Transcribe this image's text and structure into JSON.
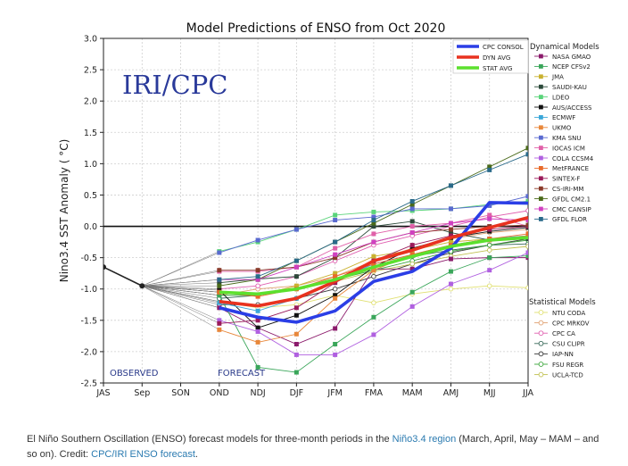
{
  "chart_data": {
    "type": "line",
    "title": "Model Predictions of ENSO from Oct 2020",
    "ylabel": "Nino3.4 SST Anomaly ( °C)",
    "xlabel": "",
    "categories": [
      "JAS",
      "Sep",
      "SON",
      "OND",
      "NDJ",
      "DJF",
      "JFM",
      "FMA",
      "MAM",
      "AMJ",
      "MJJ",
      "JJA"
    ],
    "yticks": [
      3.0,
      2.5,
      2.0,
      1.5,
      1.0,
      0.5,
      0.0,
      -0.5,
      -1.0,
      -1.5,
      -2.0,
      -2.5
    ],
    "ylim": [
      -2.5,
      3.0
    ],
    "grid": true,
    "zero_line": true,
    "watermark": "IRI/CPC",
    "observed_label": "OBSERVED",
    "forecast_label": "FORECAST",
    "observed": [
      {
        "x": 0,
        "y": -0.65
      },
      {
        "x": 1,
        "y": -0.95
      }
    ],
    "averages_legend": [
      {
        "name": "CPC CONSOL",
        "color": "#2b3ee6"
      },
      {
        "name": "DYN AVG",
        "color": "#e8321f"
      },
      {
        "name": "STAT AVG",
        "color": "#5ce02e"
      }
    ],
    "averages": [
      {
        "name": "CPC CONSOL",
        "color": "#2b3ee6",
        "values": [
          -1.3,
          -1.45,
          -1.53,
          -1.35,
          -0.88,
          -0.72,
          -0.35,
          0.38,
          0.37
        ]
      },
      {
        "name": "DYN AVG",
        "color": "#e8321f",
        "values": [
          -1.2,
          -1.27,
          -1.15,
          -0.88,
          -0.55,
          -0.38,
          -0.18,
          -0.02,
          0.14
        ]
      },
      {
        "name": "STAT AVG",
        "color": "#5ce02e",
        "values": [
          -1.05,
          -1.08,
          -1.0,
          -0.85,
          -0.65,
          -0.48,
          -0.32,
          -0.22,
          -0.18
        ]
      }
    ],
    "dynamical_title": "Dynamical Models",
    "statistical_title": "Statistical Models",
    "dynamical_models": [
      {
        "name": "NASA GMAO",
        "color": "#8b1a6b",
        "values": [
          -1.3,
          -1.62,
          -1.88,
          -1.63,
          -0.68,
          -0.68,
          -0.52,
          -0.5,
          -0.5
        ]
      },
      {
        "name": "NCEP CFSv2",
        "color": "#3aa65a",
        "values": [
          -1.1,
          -2.25,
          -2.33,
          -1.88,
          -1.45,
          -1.05,
          -0.72,
          -0.5,
          -0.47
        ]
      },
      {
        "name": "JMA",
        "color": "#c9b12f",
        "values": [
          -1.05,
          -1.1,
          -0.95,
          -0.75,
          -0.48,
          -0.38,
          -0.25,
          -0.2,
          -0.15
        ]
      },
      {
        "name": "SAUDI-KAU",
        "color": "#2c4a3a",
        "values": [
          -0.9,
          -0.84,
          -0.8,
          -0.5,
          0.0,
          0.08,
          -0.1,
          -0.22,
          -0.2
        ]
      },
      {
        "name": "LDEO",
        "color": "#5ad47a",
        "values": [
          -0.4,
          -0.25,
          -0.05,
          0.18,
          0.23,
          0.25,
          0.28,
          0.35,
          0.4
        ]
      },
      {
        "name": "AUS/ACCESS",
        "color": "#111111",
        "values": [
          -1.02,
          -1.62,
          -1.42,
          -1.1,
          -0.65,
          -0.35,
          -0.18,
          -0.08,
          -0.02
        ]
      },
      {
        "name": "ECMWF",
        "color": "#3aa6d8",
        "values": [
          -1.22,
          -1.35,
          -1.15,
          -0.88,
          -0.6,
          -0.45,
          -0.3,
          -0.2,
          -0.15
        ]
      },
      {
        "name": "UKMO",
        "color": "#e8873a",
        "values": [
          -1.65,
          -1.85,
          -1.72,
          -1.15,
          -0.7,
          -0.45,
          -0.3,
          -0.22,
          -0.15
        ]
      },
      {
        "name": "KMA SNU",
        "color": "#5a6ad0",
        "values": [
          -0.42,
          -0.22,
          -0.05,
          0.1,
          0.15,
          0.28,
          0.28,
          0.33,
          0.48
        ]
      },
      {
        "name": "IOCAS ICM",
        "color": "#e060a8",
        "values": [
          -0.72,
          -0.72,
          -0.65,
          -0.35,
          -0.12,
          0.0,
          0.05,
          0.18,
          0.0
        ]
      },
      {
        "name": "COLA CCSM4",
        "color": "#b060e0",
        "values": [
          -1.5,
          -1.68,
          -2.05,
          -2.05,
          -1.73,
          -1.28,
          -0.92,
          -0.7,
          -0.42
        ]
      },
      {
        "name": "MetFRANCE",
        "color": "#e86a2a",
        "values": [
          -1.05,
          -1.12,
          -1.0,
          -0.8,
          -0.6,
          -0.45,
          -0.3,
          -0.2,
          -0.12
        ]
      },
      {
        "name": "SINTEX-F",
        "color": "#9a1a5a",
        "values": [
          -1.55,
          -1.5,
          -1.3,
          -0.9,
          -0.55,
          -0.3,
          -0.15,
          -0.05,
          0.0
        ]
      },
      {
        "name": "CS-IRI-MM",
        "color": "#8a3a2a",
        "values": [
          -0.7,
          -0.7,
          -0.65,
          -0.5,
          -0.25,
          -0.1,
          -0.05,
          0.0,
          0.02
        ]
      },
      {
        "name": "GFDL CM2.1",
        "color": "#4a6a1a",
        "values": [
          -0.95,
          -0.85,
          -0.55,
          -0.25,
          0.05,
          0.35,
          0.65,
          0.95,
          1.25
        ]
      },
      {
        "name": "CMC CANSIP",
        "color": "#d040c0",
        "values": [
          -0.85,
          -0.85,
          -0.65,
          -0.45,
          -0.25,
          -0.1,
          0.05,
          0.12,
          0.1
        ]
      },
      {
        "name": "GFDL FLOR",
        "color": "#2a6a8a",
        "values": [
          -0.85,
          -0.8,
          -0.55,
          -0.25,
          0.1,
          0.4,
          0.65,
          0.9,
          1.15
        ]
      }
    ],
    "statistical_models": [
      {
        "name": "NTU CODA",
        "color": "#e0e070",
        "values": [
          -1.2,
          -1.3,
          -1.25,
          -1.1,
          -1.22,
          -1.08,
          -1.0,
          -0.95,
          -0.98
        ]
      },
      {
        "name": "CPC MRKOV",
        "color": "#e0a070",
        "values": [
          -1.1,
          -1.0,
          -0.95,
          -0.8,
          -0.55,
          -0.35,
          -0.2,
          -0.1,
          -0.05
        ]
      },
      {
        "name": "CPC CA",
        "color": "#e060b0",
        "values": [
          -1.0,
          -0.95,
          -0.8,
          -0.55,
          -0.3,
          -0.15,
          0.0,
          0.15,
          0.25
        ]
      },
      {
        "name": "CSU CLIPR",
        "color": "#3a6a5a",
        "values": [
          -1.15,
          -1.1,
          -1.0,
          -0.85,
          -0.65,
          -0.48,
          -0.38,
          -0.3,
          -0.28
        ]
      },
      {
        "name": "IAP-NN",
        "color": "#3a3a3a",
        "values": [
          -1.25,
          -1.25,
          -1.15,
          -1.0,
          -0.8,
          -0.6,
          -0.42,
          -0.3,
          -0.2
        ]
      },
      {
        "name": "FSU REGR",
        "color": "#3aa63a",
        "values": [
          -1.1,
          -1.1,
          -1.0,
          -0.85,
          -0.7,
          -0.55,
          -0.4,
          -0.3,
          -0.22
        ]
      },
      {
        "name": "UCLA-TCD",
        "color": "#c0c050",
        "values": [
          -1.05,
          -1.1,
          -1.0,
          -0.88,
          -0.72,
          -0.6,
          -0.48,
          -0.38,
          -0.32
        ]
      }
    ]
  },
  "caption": {
    "text_before": "El Niño Southern Oscillation (ENSO) forecast models for three-month periods in the ",
    "link1": "Niño3.4 region",
    "text_middle": " (March, April, May – MAM – and so on). Credit: ",
    "link2": "CPC/IRI ENSO forecast",
    "text_after": "."
  }
}
